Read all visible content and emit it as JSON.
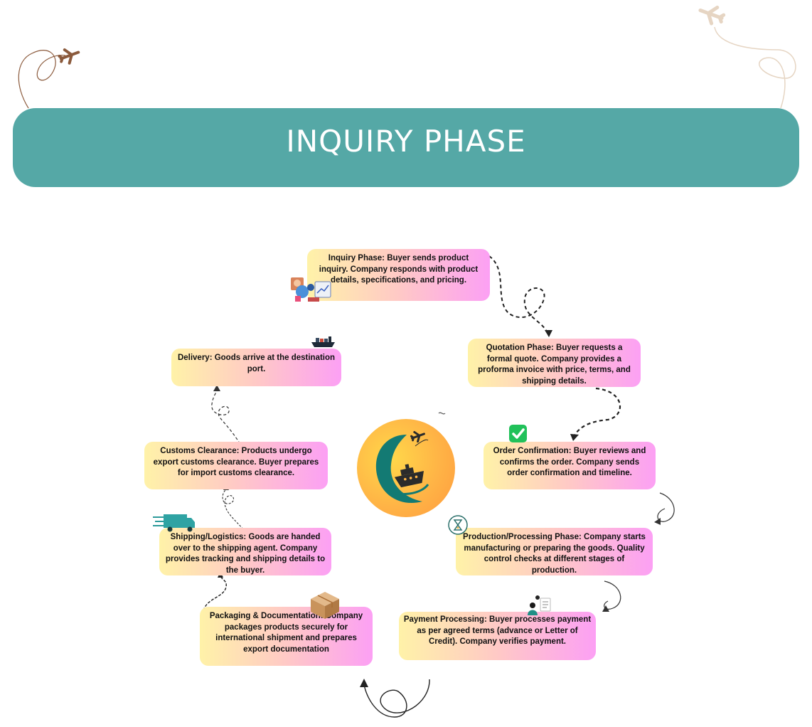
{
  "header": {
    "title": "INQUIRY PHASE"
  },
  "steps": {
    "inquiry": "Inquiry Phase: Buyer sends product inquiry. Company responds with product details, specifications, and pricing.",
    "quotation": "Quotation Phase: Buyer requests a formal quote. Company provides a proforma invoice with price, terms, and shipping details.",
    "order": "Order Confirmation: Buyer reviews and confirms the order. Company sends order confirmation and timeline.",
    "production": "Production/Processing Phase: Company starts manufacturing or preparing the goods. Quality control checks at different stages of production.",
    "payment": "Payment Processing: Buyer processes payment as per agreed terms (advance or Letter of Credit). Company verifies payment.",
    "packaging": "Packaging & Documentation: Company packages products securely for international shipment and prepares export documentation",
    "shipping": "Shipping/Logistics: Goods are handed over to the shipping agent. Company provides tracking and shipping details to the buyer.",
    "customs": "Customs Clearance: Products undergo export customs clearance. Buyer prepares for import customs clearance.",
    "delivery": "Delivery: Goods arrive at the destination port."
  },
  "colors": {
    "banner": "#55a8a6",
    "card_gradient": [
      "#fff2a8",
      "#ffc9c6",
      "#fca0f4"
    ],
    "logo_teal": "#137a73",
    "logo_orange": "#ffb446"
  },
  "icons": [
    "airplane-icon",
    "analytics-icon",
    "cargo-ship-icon",
    "checkmark-icon",
    "truck-icon",
    "hourglass-icon",
    "box-icon",
    "person-payment-icon",
    "logo-ship-icon"
  ]
}
